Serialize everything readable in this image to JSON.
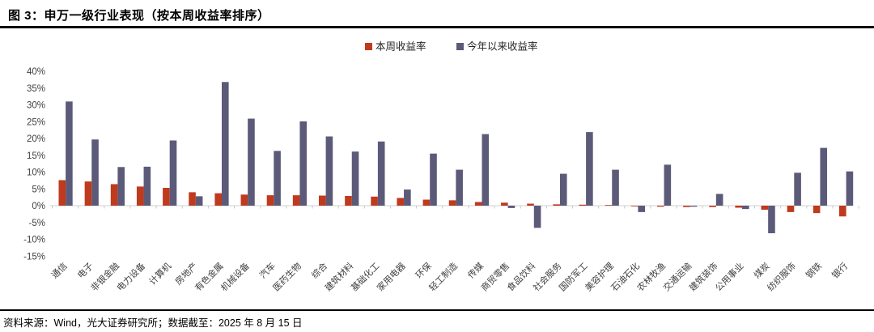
{
  "header": {
    "title": "图 3：申万一级行业表现（按本周收益率排序）"
  },
  "footer": {
    "source": "资料来源：Wind，光大证券研究所；数据截至：2025 年 8 月 15 日"
  },
  "colors": {
    "week_bar": "#C03A1D",
    "ytd_bar": "#5C5A79",
    "axis_text": "#404040",
    "legend_text": "#262626",
    "baseline": "#D9D9D9",
    "tick": "#C8C8C8"
  },
  "chart_data": {
    "type": "bar",
    "title": "申万一级行业表现（按本周收益率排序）",
    "xlabel": "",
    "ylabel": "",
    "ylim": [
      -15,
      40
    ],
    "ytick_step": 5,
    "ytick_suffix": "%",
    "grid": false,
    "legend_position": "top",
    "categories": [
      "通信",
      "电子",
      "非银金融",
      "电力设备",
      "计算机",
      "房地产",
      "有色金属",
      "机械设备",
      "汽车",
      "医药生物",
      "综合",
      "建筑材料",
      "基础化工",
      "家用电器",
      "环保",
      "轻工制造",
      "传媒",
      "商贸零售",
      "食品饮料",
      "社会服务",
      "国防军工",
      "美容护理",
      "石油石化",
      "农林牧渔",
      "交通运输",
      "建筑装饰",
      "公用事业",
      "煤炭",
      "纺织服饰",
      "钢铁",
      "银行"
    ],
    "series": [
      {
        "name": "本周收益率",
        "color": "#C03A1D",
        "values": [
          7.6,
          7.2,
          6.4,
          5.7,
          5.3,
          4.0,
          3.7,
          3.3,
          3.1,
          3.1,
          3.0,
          2.9,
          2.7,
          2.3,
          1.8,
          1.6,
          1.1,
          0.9,
          0.6,
          0.4,
          0.3,
          0.2,
          -0.2,
          -0.3,
          -0.4,
          -0.4,
          -0.6,
          -1.2,
          -1.9,
          -2.2,
          -3.2
        ]
      },
      {
        "name": "今年以来收益率",
        "color": "#5C5A79",
        "values": [
          31.0,
          19.7,
          11.5,
          11.6,
          19.4,
          2.8,
          36.8,
          25.9,
          16.3,
          25.1,
          20.6,
          16.1,
          19.1,
          4.8,
          15.5,
          10.7,
          21.3,
          -0.7,
          -6.6,
          9.5,
          21.9,
          10.7,
          -1.9,
          12.2,
          -0.3,
          3.5,
          -1.0,
          -8.2,
          9.8,
          17.2,
          10.2
        ]
      }
    ]
  }
}
